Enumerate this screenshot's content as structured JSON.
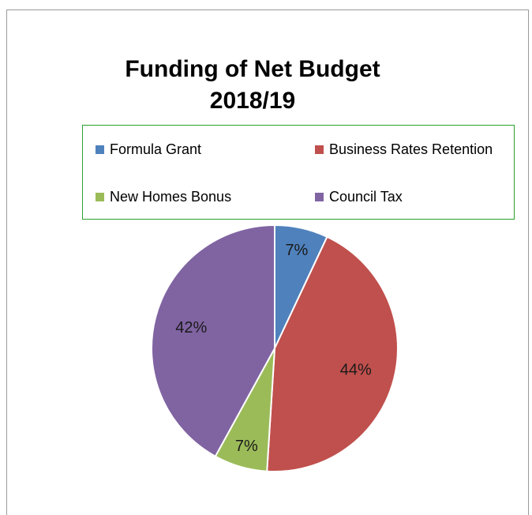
{
  "chart_data": {
    "type": "pie",
    "title_lines": [
      "Funding of Net Budget",
      "2018/19"
    ],
    "legend_placement": "top",
    "categories": [
      "Formula Grant",
      "Business Rates Retention",
      "New Homes Bonus",
      "Council Tax"
    ],
    "values": [
      7,
      44,
      7,
      42
    ],
    "data_labels": [
      "7%",
      "44%",
      "7%",
      "42%"
    ],
    "colors": [
      "#4f81bd",
      "#c0504d",
      "#9bbb59",
      "#8064a2"
    ]
  }
}
